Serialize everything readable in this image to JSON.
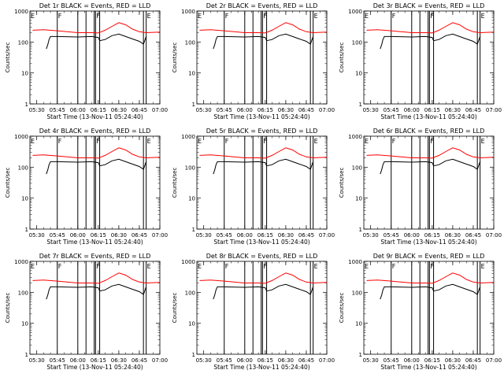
{
  "chart_data": {
    "type": "line",
    "layout": "3x3 grid",
    "ylabel": "Counts/sec",
    "xlabel": "Start Time (13-Nov-11 05:24:40)",
    "x_tick_labels": [
      "05:30",
      "05:45",
      "06:00",
      "06:15",
      "06:30",
      "06:45",
      "07:00"
    ],
    "x_range": [
      "05:25",
      "07:00"
    ],
    "y_scale": "log",
    "y_range": [
      1,
      1000
    ],
    "y_tick_labels": [
      "1",
      "10",
      "100",
      "1000"
    ],
    "series_colors": {
      "events": "#000000",
      "lld": "#ff0000"
    },
    "flag_label": "F",
    "end_label": "E",
    "panels": [
      {
        "title": "Det 1r BLACK = Events, RED = LLD",
        "f_times": [
          "05:45",
          "06:13"
        ],
        "e_time": "06:50"
      },
      {
        "title": "Det 2r BLACK = Events, RED = LLD",
        "f_times": [
          "05:45",
          "06:13"
        ],
        "e_time": "06:50"
      },
      {
        "title": "Det 3r BLACK = Events, RED = LLD",
        "f_times": [
          "05:45",
          "06:13"
        ],
        "e_time": "06:50"
      },
      {
        "title": "Det 4r BLACK = Events, RED = LLD",
        "f_times": [
          "05:45",
          "06:13"
        ],
        "e_time": "06:50"
      },
      {
        "title": "Det 5r BLACK = Events, RED = LLD",
        "f_times": [
          "05:45",
          "06:13"
        ],
        "e_time": "06:50"
      },
      {
        "title": "Det 6r BLACK = Events, RED = LLD",
        "f_times": [
          "05:45",
          "06:13"
        ],
        "e_time": "06:50"
      },
      {
        "title": "Det 7r BLACK = Events, RED = LLD",
        "f_times": [
          "05:45",
          "06:13"
        ],
        "e_time": "06:50"
      },
      {
        "title": "Det 8r BLACK = Events, RED = LLD",
        "f_times": [
          "05:45",
          "06:13"
        ],
        "e_time": "06:50"
      },
      {
        "title": "Det 9r BLACK = Events, RED = LLD",
        "f_times": [
          "05:45",
          "06:13"
        ],
        "e_time": "06:50"
      }
    ],
    "vertical_lines": [
      "05:45",
      "06:00",
      "06:06",
      "06:12",
      "06:13",
      "06:16",
      "06:48",
      "06:50"
    ],
    "events_series": {
      "x": [
        "05:37",
        "05:38",
        "05:39",
        "05:40",
        "05:45",
        "06:00",
        "06:10",
        "06:15",
        "06:16",
        "06:20",
        "06:25",
        "06:30",
        "06:35",
        "06:40",
        "06:45",
        "06:48",
        "06:50"
      ],
      "y": [
        60,
        80,
        120,
        150,
        150,
        145,
        150,
        140,
        110,
        120,
        160,
        180,
        150,
        125,
        105,
        85,
        150
      ]
    },
    "lld_series": {
      "x": [
        "05:27",
        "05:35",
        "05:45",
        "06:00",
        "06:10",
        "06:15",
        "06:20",
        "06:25",
        "06:30",
        "06:35",
        "06:40",
        "06:45",
        "06:50",
        "07:00"
      ],
      "y": [
        240,
        250,
        230,
        200,
        200,
        195,
        240,
        320,
        420,
        360,
        260,
        215,
        200,
        210
      ]
    }
  }
}
